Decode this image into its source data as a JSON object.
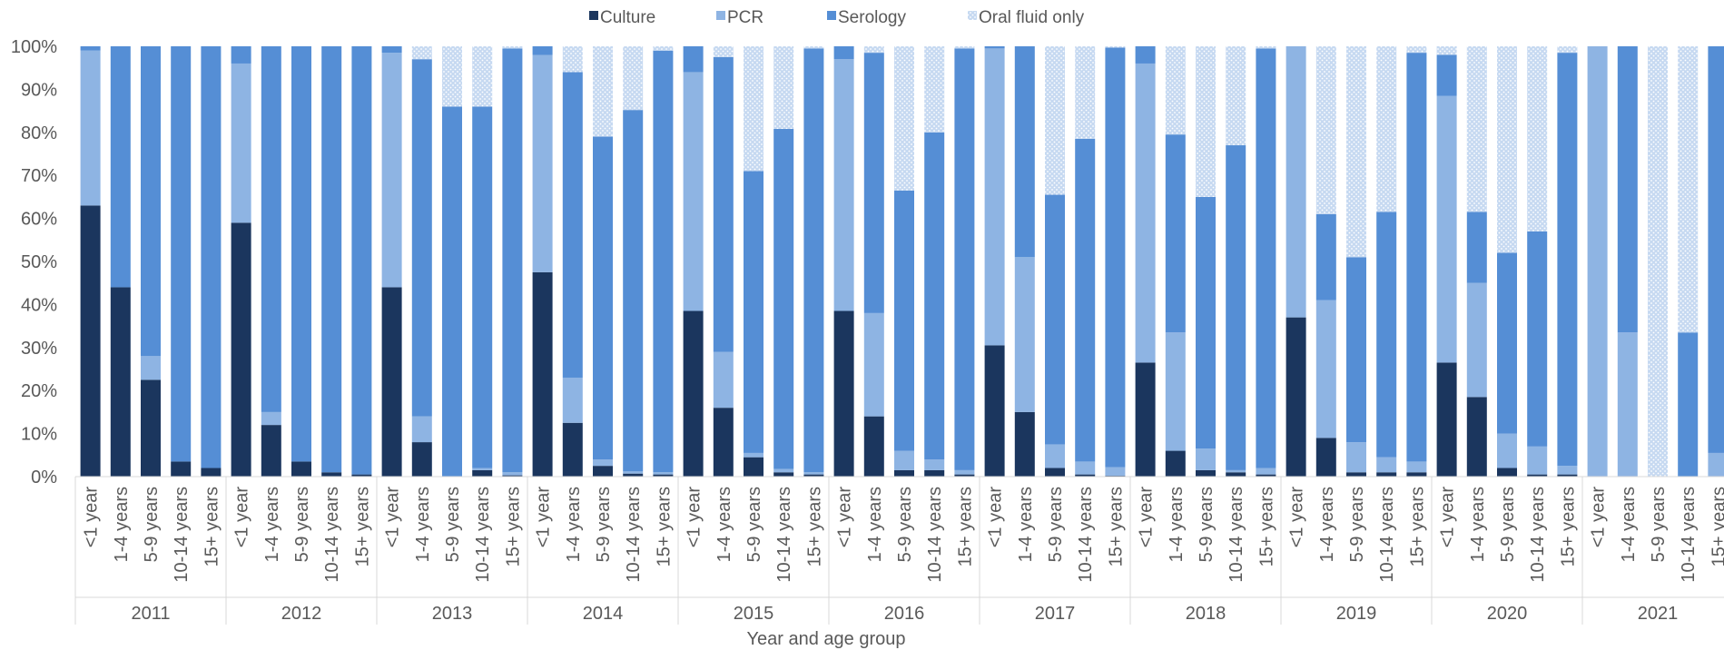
{
  "chart_data": {
    "type": "bar",
    "stacked": true,
    "percent_stacked": true,
    "xlabel": "Year and age group",
    "ylabel": "",
    "ylim": [
      0,
      100
    ],
    "yticks": [
      "0%",
      "10%",
      "20%",
      "30%",
      "40%",
      "50%",
      "60%",
      "70%",
      "80%",
      "90%",
      "100%"
    ],
    "legend_position": "top",
    "grid": false,
    "groups": [
      "2011",
      "2012",
      "2013",
      "2014",
      "2015",
      "2016",
      "2017",
      "2018",
      "2019",
      "2020",
      "2021"
    ],
    "age_groups": [
      "<1 year",
      "1-4 years",
      "5-9 years",
      "10-14 years",
      "15+ years"
    ],
    "series": [
      {
        "name": "Culture",
        "color": "#1b365e",
        "values": [
          63,
          44,
          22.5,
          3.5,
          2,
          59,
          12,
          3.5,
          1,
          0.5,
          44,
          8,
          0,
          1.5,
          0.3,
          47.5,
          12.5,
          2.5,
          0.7,
          0.5,
          38.5,
          16,
          4.5,
          1,
          0.5,
          38.5,
          14,
          1.5,
          1.5,
          0.5,
          30.5,
          15,
          2,
          0.5,
          0.2,
          26.5,
          6,
          1.5,
          1,
          0.5,
          37,
          9,
          1,
          1,
          1,
          26.5,
          18.5,
          2,
          0.5,
          0.5,
          0,
          0,
          0,
          0,
          0
        ]
      },
      {
        "name": "PCR",
        "color": "#8eb4e3",
        "values": [
          36,
          0,
          5.5,
          0,
          0,
          37,
          3,
          0,
          0,
          0,
          54.5,
          6,
          0,
          0.5,
          0.7,
          50.5,
          10.5,
          1.5,
          0.5,
          0.5,
          55.5,
          13,
          1,
          0.8,
          0.5,
          58.5,
          24,
          4.5,
          2.5,
          1,
          69,
          36,
          5.5,
          3,
          2,
          69.5,
          27.5,
          5,
          0.5,
          1.5,
          63,
          32,
          7,
          3.5,
          2.5,
          62,
          26.5,
          8,
          6.5,
          2,
          100,
          33.5,
          0,
          0,
          5.5
        ]
      },
      {
        "name": "Serology",
        "color": "#558ed5",
        "values": [
          1,
          56,
          72,
          96.5,
          98,
          4,
          85,
          96.5,
          99,
          99.5,
          1.5,
          83,
          86,
          84,
          98.5,
          2,
          71,
          75,
          84,
          98,
          6,
          68.5,
          65.5,
          79,
          98.5,
          3,
          60.5,
          60.5,
          76,
          98,
          0.5,
          49.5,
          58,
          75,
          97.5,
          4,
          46,
          58.5,
          75.5,
          97.5,
          0,
          20,
          43,
          57,
          95,
          9.5,
          16.5,
          42,
          50,
          96,
          0,
          66.5,
          0,
          33.5,
          94.5
        ]
      },
      {
        "name": "Oral fluid only",
        "color": "#c6d9f1",
        "values": [
          0,
          0,
          0,
          0,
          0,
          0,
          0,
          0,
          0,
          0,
          0,
          3,
          14,
          14,
          0.5,
          0,
          6,
          21,
          14.8,
          1,
          0,
          2.5,
          29,
          19.2,
          0.5,
          0,
          1.5,
          33.5,
          20,
          0.5,
          0,
          0,
          34.5,
          21.5,
          0.3,
          0,
          20.5,
          35,
          23,
          0.5,
          0,
          39,
          49,
          38.5,
          1.5,
          2,
          38.5,
          48,
          43,
          1.5,
          0,
          0,
          100,
          66.5,
          0
        ]
      }
    ]
  }
}
